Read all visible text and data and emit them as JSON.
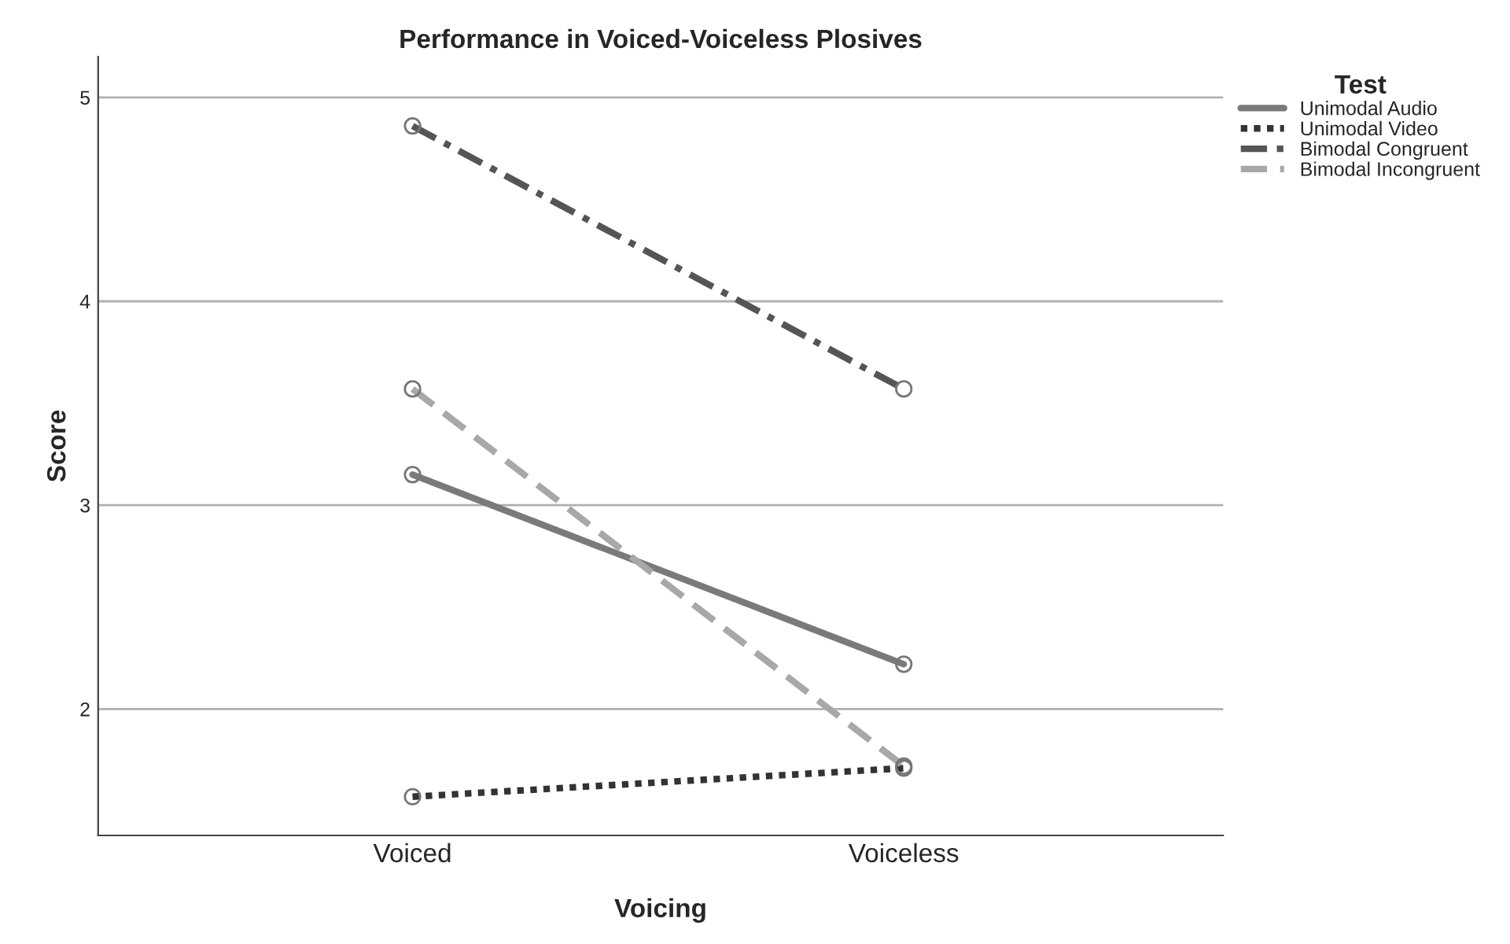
{
  "chart_data": {
    "type": "line",
    "title": "Performance in Voiced-Voiceless Plosives",
    "xlabel": "Voicing",
    "ylabel": "Score",
    "legend_title": "Test",
    "categories": [
      "Voiced",
      "Voiceless"
    ],
    "series": [
      {
        "name": "Unimodal Audio",
        "color": "#7a7a7a",
        "line_style": "solid",
        "values": [
          3.15,
          2.22
        ]
      },
      {
        "name": "Unimodal Video",
        "color": "#333333",
        "line_style": "dotted",
        "values": [
          1.57,
          1.71
        ]
      },
      {
        "name": "Bimodal Congruent",
        "color": "#555555",
        "line_style": "dashdot",
        "values": [
          4.86,
          3.57
        ]
      },
      {
        "name": "Bimodal Incongruent",
        "color": "#a8a8a8",
        "line_style": "dashed",
        "values": [
          3.57,
          1.72
        ]
      }
    ],
    "ylim": [
      1.38,
      5.2
    ],
    "yticks": [
      2,
      3,
      4,
      5
    ],
    "grid": "y",
    "legend": "top right",
    "marker": "circle"
  }
}
